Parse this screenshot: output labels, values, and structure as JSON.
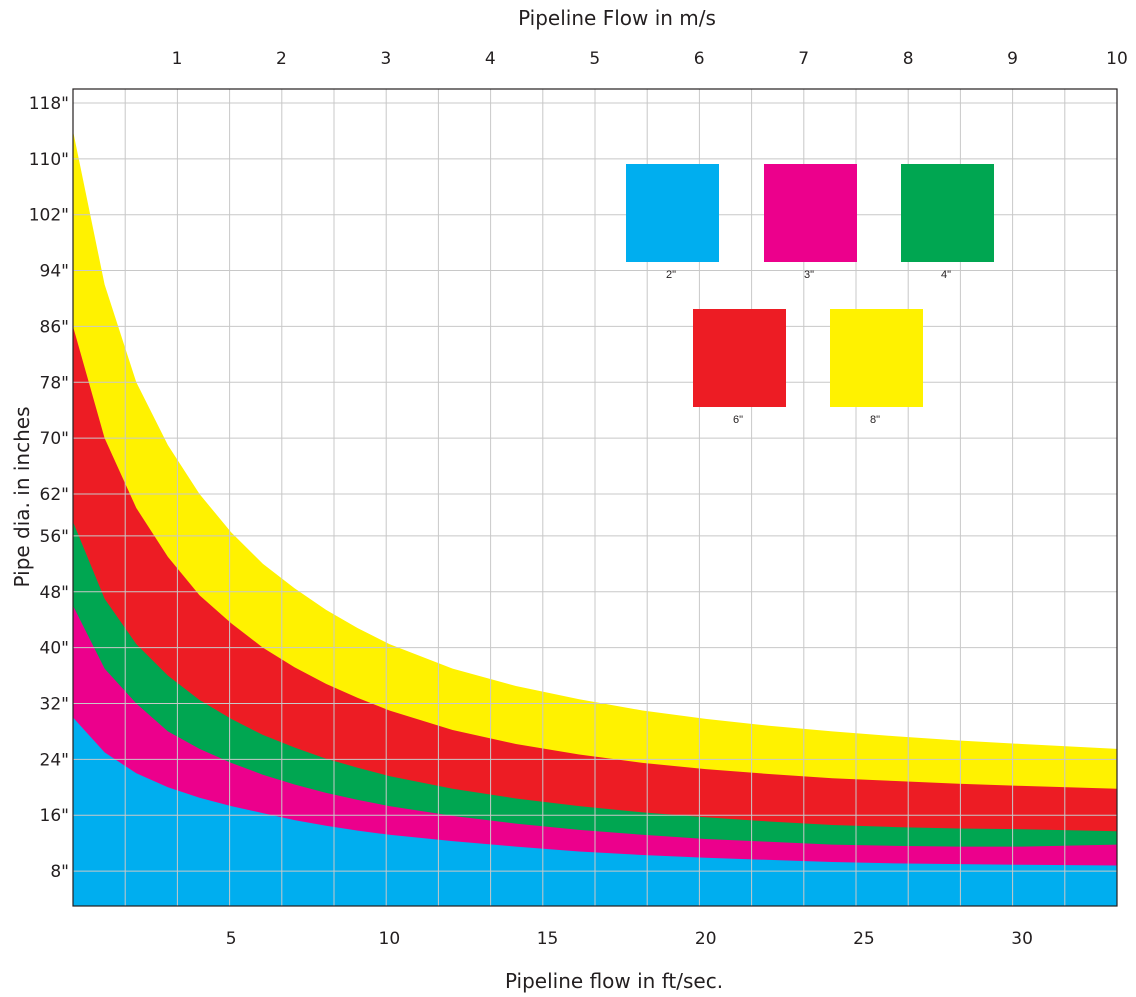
{
  "chart_data": {
    "type": "area",
    "top_axis_title": "Pipeline Flow in m/s",
    "xlabel": "Pipeline flow in ft/sec.",
    "ylabel": "Pipe dia. in inches",
    "x_ticks_bottom": [
      5,
      10,
      15,
      20,
      25,
      30
    ],
    "x_ticks_top": [
      1,
      2,
      3,
      4,
      5,
      6,
      7,
      8,
      9,
      10
    ],
    "y_ticks": [
      "8\"",
      "16\"",
      "24\"",
      "32\"",
      "40\"",
      "48\"",
      "56\"",
      "62\"",
      "70\"",
      "78\"",
      "86\"",
      "94\"",
      "102\"",
      "110\"",
      "118\""
    ],
    "y_tick_values": [
      8,
      16,
      24,
      32,
      40,
      48,
      56,
      62,
      70,
      78,
      86,
      94,
      102,
      110,
      118
    ],
    "xlim": [
      0,
      33
    ],
    "ylim": [
      3,
      120
    ],
    "grid": true,
    "legend_placement": "top-right",
    "x": [
      0,
      1,
      2,
      3,
      4,
      5,
      6,
      7,
      8,
      9,
      10,
      12,
      14,
      16,
      18,
      20,
      22,
      24,
      26,
      28,
      30,
      33
    ],
    "series": [
      {
        "name": "2\"",
        "color": "#00aeef",
        "values": [
          30,
          25,
          22,
          20,
          18.5,
          17.3,
          16.3,
          15.3,
          14.5,
          13.8,
          13.2,
          12.3,
          11.5,
          10.8,
          10.3,
          9.9,
          9.6,
          9.3,
          9.1,
          9.0,
          8.9,
          8.8
        ]
      },
      {
        "name": "3\"",
        "color": "#ec008c",
        "values": [
          46,
          37,
          32,
          28,
          25.5,
          23.5,
          21.8,
          20.4,
          19.2,
          18.2,
          17.3,
          15.9,
          14.8,
          13.9,
          13.2,
          12.6,
          12.2,
          11.8,
          11.6,
          11.5,
          11.5,
          11.8
        ]
      },
      {
        "name": "4\"",
        "color": "#00a651",
        "values": [
          58,
          47,
          40.5,
          36,
          32.5,
          29.8,
          27.5,
          25.7,
          24.1,
          22.8,
          21.6,
          19.8,
          18.4,
          17.3,
          16.4,
          15.7,
          15.1,
          14.6,
          14.3,
          14.1,
          14.0,
          13.7
        ]
      },
      {
        "name": "6\"",
        "color": "#ed1c24",
        "values": [
          86,
          70,
          60,
          53,
          47.5,
          43.5,
          40,
          37.2,
          34.8,
          32.8,
          31,
          28.2,
          26.2,
          24.7,
          23.5,
          22.6,
          21.9,
          21.3,
          20.9,
          20.5,
          20.2,
          19.8
        ]
      },
      {
        "name": "8\"",
        "color": "#fff200",
        "values": [
          114,
          92,
          78,
          69,
          62,
          56.5,
          52,
          48.5,
          45.4,
          42.8,
          40.5,
          37,
          34.5,
          32.6,
          31,
          29.8,
          28.8,
          28,
          27.3,
          26.7,
          26.2,
          25.5
        ]
      }
    ],
    "legend": [
      {
        "label": "2\"",
        "color": "#00aeef"
      },
      {
        "label": "3\"",
        "color": "#ec008c"
      },
      {
        "label": "4\"",
        "color": "#00a651"
      },
      {
        "label": "6\"",
        "color": "#ed1c24"
      },
      {
        "label": "8\"",
        "color": "#fff200"
      }
    ]
  }
}
